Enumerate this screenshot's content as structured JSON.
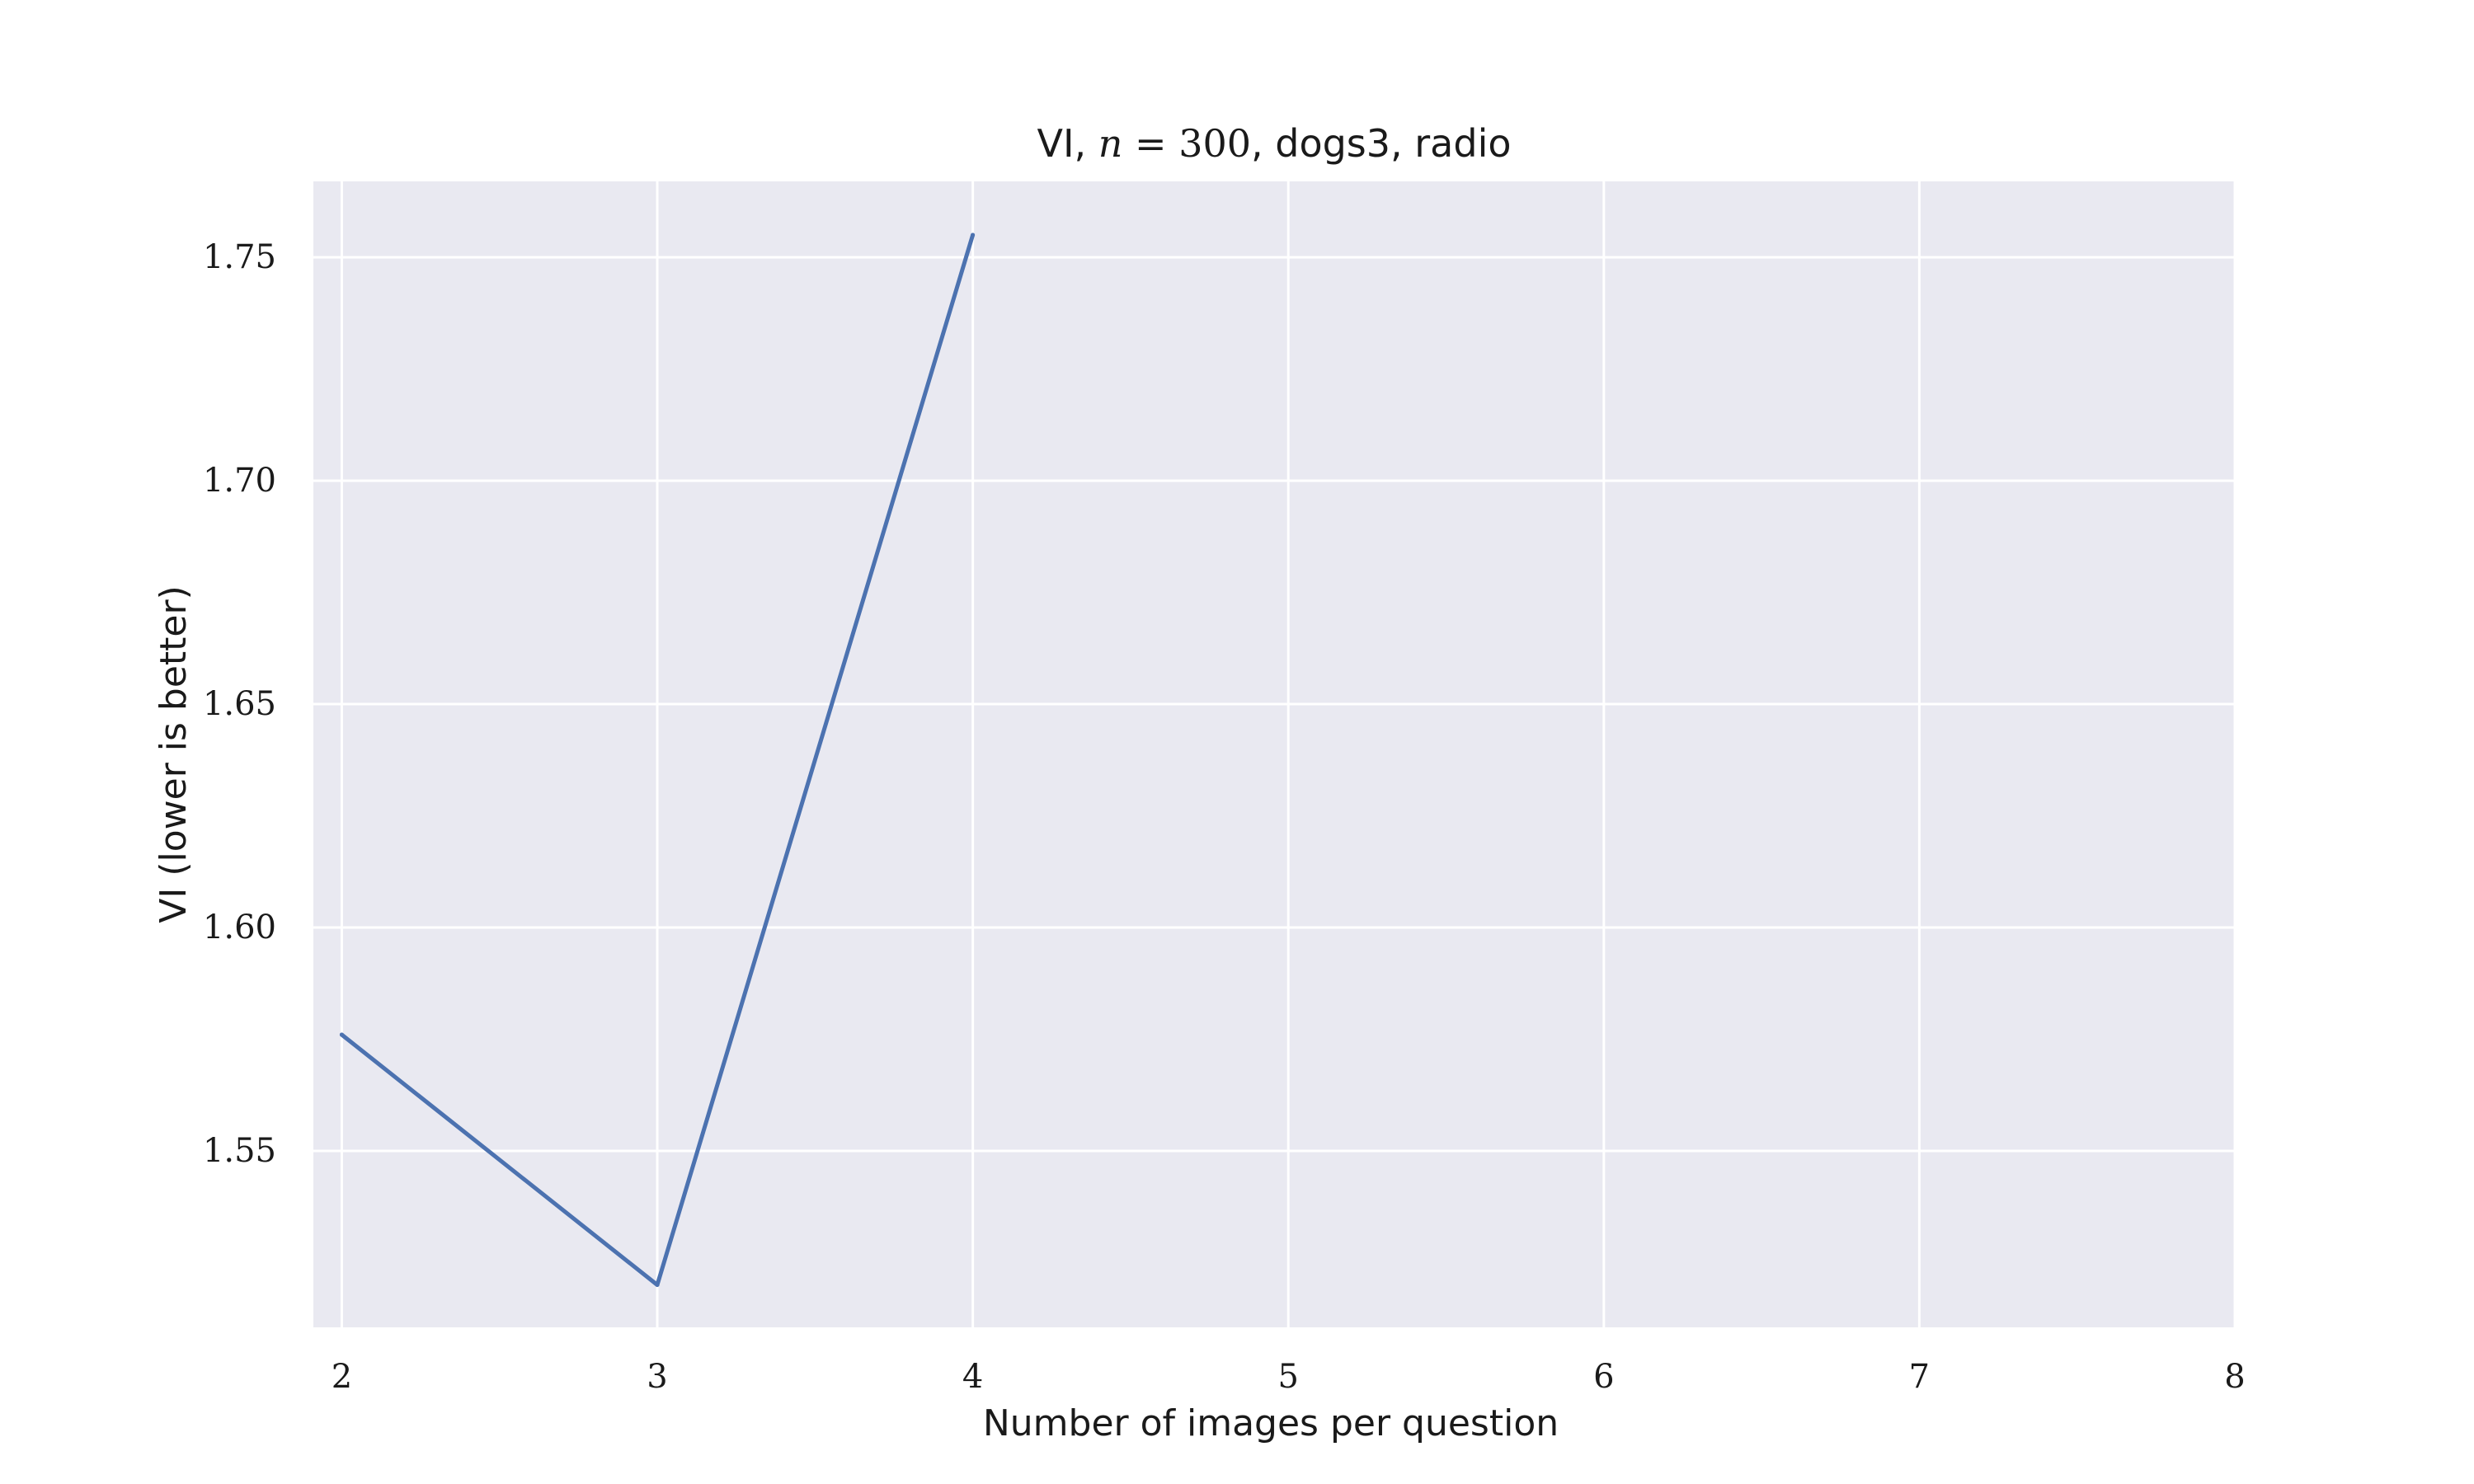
{
  "chart_data": {
    "type": "line",
    "title": {
      "prefix": "VI, ",
      "var": "n",
      "equals": " = 300",
      "suffix": ", dogs3, radio"
    },
    "xlabel": "Number of images per question",
    "ylabel": "VI (lower is better)",
    "xlim": [
      1.91,
      8.0
    ],
    "ylim": [
      1.5105,
      1.767
    ],
    "x_ticks": [
      "2",
      "3",
      "4",
      "5",
      "6",
      "7",
      "8"
    ],
    "y_ticks": [
      "1.55",
      "1.60",
      "1.65",
      "1.70",
      "1.75"
    ],
    "grid": true,
    "legend": "none",
    "series": [
      {
        "x": [
          2,
          3,
          4
        ],
        "y": [
          1.576,
          1.52,
          1.755
        ]
      }
    ],
    "colors": {
      "background": "#ffffff",
      "plot_background": "#e9e9f1",
      "grid": "#ffffff",
      "line": "#4c72b0"
    }
  }
}
